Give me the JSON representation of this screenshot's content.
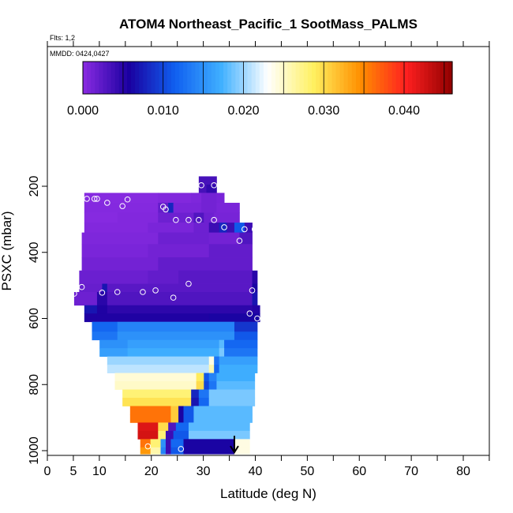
{
  "header": {
    "title": "ATOM4 Northeast_Pacific_1 SootMass_PALMS",
    "flights": "Flts: 1,2",
    "mmdd": "MMDD: 0424,0427"
  },
  "chart_data": {
    "type": "heatmap",
    "title": "ATOM4 Northeast_Pacific_1 SootMass_PALMS",
    "xlabel": "Latitude (deg N)",
    "ylabel": "PSXC (mbar)",
    "xlim": [
      0,
      85
    ],
    "ylim": [
      1010,
      60
    ],
    "x_ticks_major": [
      0,
      10,
      20,
      30,
      40,
      50,
      60,
      70,
      80
    ],
    "x_tick_labels": [
      "0",
      "5",
      "10",
      "20",
      "30",
      "40",
      "50",
      "60",
      "70",
      "80"
    ],
    "x_tick_label_values": [
      0,
      5,
      10,
      20,
      30,
      40,
      50,
      60,
      70,
      80
    ],
    "x_ticks_minor": [
      5,
      15,
      25,
      35,
      45,
      55,
      65,
      75,
      85
    ],
    "y_ticks": [
      200,
      400,
      600,
      800,
      1000
    ],
    "y_tick_labels": [
      "200",
      "400",
      "600",
      "800",
      "1000"
    ],
    "colorbar": {
      "min": 0.0,
      "max": 0.046,
      "ticks": [
        0.0,
        0.01,
        0.02,
        0.03,
        0.04
      ],
      "tick_labels": [
        "0.000",
        "0.010",
        "0.020",
        "0.030",
        "0.040"
      ],
      "color_stops": [
        "#8a2be2",
        "#1a00a0",
        "#1060f0",
        "#40b0ff",
        "#ffffff",
        "#fff060",
        "#ff9000",
        "#ff2020",
        "#900000"
      ]
    },
    "grid": false,
    "rows": [
      {
        "p_top": 170,
        "p_bot": 195,
        "segments": [
          {
            "lat0": 28.0,
            "lat1": 31.5,
            "value": 0.0035
          }
        ]
      },
      {
        "p_top": 195,
        "p_bot": 220,
        "segments": [
          {
            "lat0": 28.0,
            "lat1": 29.5,
            "value": 0.0035
          },
          {
            "lat0": 29.5,
            "lat1": 31.5,
            "value": 0.0045
          }
        ]
      },
      {
        "p_top": 220,
        "p_bot": 250,
        "segments": [
          {
            "lat0": 5.5,
            "lat1": 20.0,
            "value": 0.0002
          },
          {
            "lat0": 20.0,
            "lat1": 26.5,
            "value": 0.0004
          },
          {
            "lat0": 26.5,
            "lat1": 28.5,
            "value": 0.0006
          },
          {
            "lat0": 28.5,
            "lat1": 31.5,
            "value": 0.0012
          },
          {
            "lat0": 31.5,
            "lat1": 33.0,
            "value": 0.0009
          }
        ]
      },
      {
        "p_top": 250,
        "p_bot": 280,
        "segments": [
          {
            "lat0": 5.5,
            "lat1": 20.0,
            "value": 0.0003
          },
          {
            "lat0": 20.0,
            "lat1": 22.0,
            "value": 0.002
          },
          {
            "lat0": 22.0,
            "lat1": 23.0,
            "value": 0.008
          },
          {
            "lat0": 23.0,
            "lat1": 28.5,
            "value": 0.0008
          },
          {
            "lat0": 28.5,
            "lat1": 31.5,
            "value": 0.0012
          },
          {
            "lat0": 31.5,
            "lat1": 36.0,
            "value": 0.0008
          }
        ]
      },
      {
        "p_top": 280,
        "p_bot": 310,
        "segments": [
          {
            "lat0": 5.5,
            "lat1": 12.0,
            "value": 0.0002
          },
          {
            "lat0": 12.0,
            "lat1": 20.0,
            "value": 0.0004
          },
          {
            "lat0": 20.0,
            "lat1": 27.0,
            "value": 0.0015
          },
          {
            "lat0": 27.0,
            "lat1": 29.0,
            "value": 0.003
          },
          {
            "lat0": 29.0,
            "lat1": 31.0,
            "value": 0.0015
          },
          {
            "lat0": 31.0,
            "lat1": 36.0,
            "value": 0.001
          }
        ]
      },
      {
        "p_top": 310,
        "p_bot": 340,
        "segments": [
          {
            "lat0": 5.5,
            "lat1": 18.0,
            "value": 0.0004
          },
          {
            "lat0": 18.0,
            "lat1": 27.0,
            "value": 0.0008
          },
          {
            "lat0": 27.0,
            "lat1": 30.0,
            "value": 0.0015
          },
          {
            "lat0": 30.0,
            "lat1": 32.0,
            "value": 0.004
          },
          {
            "lat0": 32.0,
            "lat1": 33.5,
            "value": 0.008
          },
          {
            "lat0": 33.5,
            "lat1": 35.0,
            "value": 0.004
          },
          {
            "lat0": 35.0,
            "lat1": 37.0,
            "value": 0.011
          },
          {
            "lat0": 37.0,
            "lat1": 38.5,
            "value": 0.004
          }
        ]
      },
      {
        "p_top": 340,
        "p_bot": 375,
        "segments": [
          {
            "lat0": 5.0,
            "lat1": 20.0,
            "value": 0.0006
          },
          {
            "lat0": 20.0,
            "lat1": 30.0,
            "value": 0.0015
          },
          {
            "lat0": 30.0,
            "lat1": 36.0,
            "value": 0.0012
          },
          {
            "lat0": 36.0,
            "lat1": 38.5,
            "value": 0.003
          }
        ]
      },
      {
        "p_top": 375,
        "p_bot": 415,
        "segments": [
          {
            "lat0": 5.0,
            "lat1": 18.0,
            "value": 0.0008
          },
          {
            "lat0": 18.0,
            "lat1": 30.0,
            "value": 0.0012
          },
          {
            "lat0": 30.0,
            "lat1": 38.5,
            "value": 0.002
          }
        ]
      },
      {
        "p_top": 415,
        "p_bot": 455,
        "segments": [
          {
            "lat0": 5.0,
            "lat1": 20.0,
            "value": 0.0012
          },
          {
            "lat0": 20.0,
            "lat1": 38.5,
            "value": 0.002
          }
        ]
      },
      {
        "p_top": 455,
        "p_bot": 495,
        "segments": [
          {
            "lat0": 4.5,
            "lat1": 18.0,
            "value": 0.0016
          },
          {
            "lat0": 18.0,
            "lat1": 24.0,
            "value": 0.002
          },
          {
            "lat0": 24.0,
            "lat1": 38.5,
            "value": 0.0025
          },
          {
            "lat0": 38.5,
            "lat1": 39.5,
            "value": 0.005
          }
        ]
      },
      {
        "p_top": 495,
        "p_bot": 520,
        "segments": [
          {
            "lat0": 4.5,
            "lat1": 9.0,
            "value": 0.0018
          },
          {
            "lat0": 9.0,
            "lat1": 10.0,
            "value": 0.007
          },
          {
            "lat0": 10.0,
            "lat1": 38.5,
            "value": 0.0025
          },
          {
            "lat0": 38.5,
            "lat1": 39.5,
            "value": 0.006
          }
        ]
      },
      {
        "p_top": 520,
        "p_bot": 560,
        "segments": [
          {
            "lat0": 3.5,
            "lat1": 8.0,
            "value": 0.0015
          },
          {
            "lat0": 8.0,
            "lat1": 10.0,
            "value": 0.005
          },
          {
            "lat0": 10.0,
            "lat1": 38.5,
            "value": 0.003
          },
          {
            "lat0": 38.5,
            "lat1": 39.5,
            "value": 0.007
          }
        ]
      },
      {
        "p_top": 560,
        "p_bot": 585,
        "segments": [
          {
            "lat0": 5.5,
            "lat1": 8.0,
            "value": 0.007
          },
          {
            "lat0": 8.0,
            "lat1": 10.0,
            "value": 0.0055
          },
          {
            "lat0": 10.0,
            "lat1": 38.5,
            "value": 0.0048
          },
          {
            "lat0": 38.5,
            "lat1": 40.0,
            "value": 0.0052
          }
        ]
      },
      {
        "p_top": 585,
        "p_bot": 610,
        "segments": [
          {
            "lat0": 5.5,
            "lat1": 8.0,
            "value": 0.0055
          },
          {
            "lat0": 8.0,
            "lat1": 30.0,
            "value": 0.0055
          },
          {
            "lat0": 30.0,
            "lat1": 38.5,
            "value": 0.006
          },
          {
            "lat0": 38.5,
            "lat1": 40.0,
            "value": 0.006
          }
        ]
      },
      {
        "p_top": 610,
        "p_bot": 640,
        "segments": [
          {
            "lat0": 7.0,
            "lat1": 12.0,
            "value": 0.012
          },
          {
            "lat0": 12.0,
            "lat1": 35.0,
            "value": 0.014
          },
          {
            "lat0": 35.0,
            "lat1": 39.5,
            "value": 0.009
          }
        ]
      },
      {
        "p_top": 640,
        "p_bot": 665,
        "segments": [
          {
            "lat0": 7.0,
            "lat1": 12.0,
            "value": 0.013
          },
          {
            "lat0": 12.0,
            "lat1": 35.0,
            "value": 0.015
          },
          {
            "lat0": 35.0,
            "lat1": 39.5,
            "value": 0.011
          }
        ]
      },
      {
        "p_top": 665,
        "p_bot": 690,
        "segments": [
          {
            "lat0": 8.5,
            "lat1": 14.0,
            "value": 0.015
          },
          {
            "lat0": 14.0,
            "lat1": 32.0,
            "value": 0.016
          },
          {
            "lat0": 32.0,
            "lat1": 33.0,
            "value": 0.018
          },
          {
            "lat0": 33.0,
            "lat1": 39.5,
            "value": 0.012
          }
        ]
      },
      {
        "p_top": 690,
        "p_bot": 715,
        "segments": [
          {
            "lat0": 8.5,
            "lat1": 14.0,
            "value": 0.016
          },
          {
            "lat0": 14.0,
            "lat1": 32.0,
            "value": 0.017
          },
          {
            "lat0": 32.0,
            "lat1": 33.0,
            "value": 0.019
          },
          {
            "lat0": 33.0,
            "lat1": 39.5,
            "value": 0.013
          }
        ]
      },
      {
        "p_top": 715,
        "p_bot": 740,
        "segments": [
          {
            "lat0": 10.0,
            "lat1": 30.0,
            "value": 0.02
          },
          {
            "lat0": 30.0,
            "lat1": 31.0,
            "value": 0.024
          },
          {
            "lat0": 31.0,
            "lat1": 32.0,
            "value": 0.013
          },
          {
            "lat0": 32.0,
            "lat1": 39.5,
            "value": 0.016
          }
        ]
      },
      {
        "p_top": 740,
        "p_bot": 765,
        "segments": [
          {
            "lat0": 10.0,
            "lat1": 30.0,
            "value": 0.021
          },
          {
            "lat0": 30.0,
            "lat1": 31.0,
            "value": 0.026
          },
          {
            "lat0": 31.0,
            "lat1": 32.0,
            "value": 0.012
          },
          {
            "lat0": 32.0,
            "lat1": 39.5,
            "value": 0.017
          }
        ]
      },
      {
        "p_top": 765,
        "p_bot": 790,
        "segments": [
          {
            "lat0": 11.5,
            "lat1": 27.5,
            "value": 0.0245
          },
          {
            "lat0": 27.5,
            "lat1": 29.0,
            "value": 0.029
          },
          {
            "lat0": 29.0,
            "lat1": 30.0,
            "value": 0.011
          },
          {
            "lat0": 30.0,
            "lat1": 31.5,
            "value": 0.014
          },
          {
            "lat0": 31.5,
            "lat1": 39.0,
            "value": 0.017
          }
        ]
      },
      {
        "p_top": 790,
        "p_bot": 815,
        "segments": [
          {
            "lat0": 11.5,
            "lat1": 27.5,
            "value": 0.025
          },
          {
            "lat0": 27.5,
            "lat1": 29.0,
            "value": 0.03
          },
          {
            "lat0": 29.0,
            "lat1": 30.0,
            "value": 0.01
          },
          {
            "lat0": 30.0,
            "lat1": 31.5,
            "value": 0.013
          },
          {
            "lat0": 31.5,
            "lat1": 39.0,
            "value": 0.018
          }
        ]
      },
      {
        "p_top": 815,
        "p_bot": 840,
        "segments": [
          {
            "lat0": 13.0,
            "lat1": 26.5,
            "value": 0.028
          },
          {
            "lat0": 26.5,
            "lat1": 28.0,
            "value": 0.008
          },
          {
            "lat0": 28.0,
            "lat1": 30.0,
            "value": 0.013
          },
          {
            "lat0": 30.0,
            "lat1": 39.0,
            "value": 0.019
          }
        ]
      },
      {
        "p_top": 840,
        "p_bot": 865,
        "segments": [
          {
            "lat0": 13.0,
            "lat1": 26.5,
            "value": 0.0295
          },
          {
            "lat0": 26.5,
            "lat1": 28.0,
            "value": 0.007
          },
          {
            "lat0": 28.0,
            "lat1": 30.0,
            "value": 0.012
          },
          {
            "lat0": 30.0,
            "lat1": 39.0,
            "value": 0.019
          }
        ]
      },
      {
        "p_top": 865,
        "p_bot": 890,
        "segments": [
          {
            "lat0": 14.5,
            "lat1": 22.5,
            "value": 0.036
          },
          {
            "lat0": 22.5,
            "lat1": 24.0,
            "value": 0.031
          },
          {
            "lat0": 24.0,
            "lat1": 25.0,
            "value": 0.006
          },
          {
            "lat0": 25.0,
            "lat1": 27.0,
            "value": 0.011
          },
          {
            "lat0": 27.0,
            "lat1": 38.5,
            "value": 0.018
          }
        ]
      },
      {
        "p_top": 890,
        "p_bot": 915,
        "segments": [
          {
            "lat0": 14.5,
            "lat1": 22.5,
            "value": 0.036
          },
          {
            "lat0": 22.5,
            "lat1": 24.0,
            "value": 0.031
          },
          {
            "lat0": 24.0,
            "lat1": 25.0,
            "value": 0.006
          },
          {
            "lat0": 25.0,
            "lat1": 27.0,
            "value": 0.011
          },
          {
            "lat0": 27.0,
            "lat1": 38.5,
            "value": 0.018
          }
        ]
      },
      {
        "p_top": 915,
        "p_bot": 940,
        "segments": [
          {
            "lat0": 16.0,
            "lat1": 20.0,
            "value": 0.042
          },
          {
            "lat0": 20.0,
            "lat1": 22.0,
            "value": 0.03
          },
          {
            "lat0": 22.0,
            "lat1": 23.5,
            "value": 0.003
          },
          {
            "lat0": 23.5,
            "lat1": 26.0,
            "value": 0.012
          },
          {
            "lat0": 26.0,
            "lat1": 38.0,
            "value": 0.018
          }
        ]
      },
      {
        "p_top": 940,
        "p_bot": 965,
        "segments": [
          {
            "lat0": 16.0,
            "lat1": 20.0,
            "value": 0.0425
          },
          {
            "lat0": 20.0,
            "lat1": 21.5,
            "value": 0.028
          },
          {
            "lat0": 21.5,
            "lat1": 23.0,
            "value": 0.004
          },
          {
            "lat0": 23.0,
            "lat1": 26.0,
            "value": 0.011
          },
          {
            "lat0": 26.0,
            "lat1": 38.0,
            "value": 0.019
          }
        ]
      },
      {
        "p_top": 965,
        "p_bot": 990,
        "segments": [
          {
            "lat0": 16.5,
            "lat1": 18.5,
            "value": 0.036
          },
          {
            "lat0": 18.5,
            "lat1": 20.5,
            "value": 0.028
          },
          {
            "lat0": 20.5,
            "lat1": 21.5,
            "value": 0.015
          },
          {
            "lat0": 21.5,
            "lat1": 22.5,
            "value": 0.004
          },
          {
            "lat0": 22.5,
            "lat1": 25.0,
            "value": 0.012
          },
          {
            "lat0": 25.0,
            "lat1": 35.0,
            "value": 0.006
          },
          {
            "lat0": 35.0,
            "lat1": 38.0,
            "value": 0.024
          }
        ]
      },
      {
        "p_top": 990,
        "p_bot": 1010,
        "segments": [
          {
            "lat0": 16.5,
            "lat1": 18.5,
            "value": 0.034
          },
          {
            "lat0": 18.5,
            "lat1": 20.5,
            "value": 0.026
          },
          {
            "lat0": 20.5,
            "lat1": 21.5,
            "value": 0.014
          },
          {
            "lat0": 21.5,
            "lat1": 22.5,
            "value": 0.004
          },
          {
            "lat0": 22.5,
            "lat1": 25.0,
            "value": 0.011
          },
          {
            "lat0": 25.0,
            "lat1": 35.0,
            "value": 0.006
          },
          {
            "lat0": 35.0,
            "lat1": 38.0,
            "value": 0.024
          }
        ]
      }
    ],
    "points": [
      {
        "lat": 28.5,
        "p": 197
      },
      {
        "lat": 31.0,
        "p": 197
      },
      {
        "lat": 6.0,
        "p": 238
      },
      {
        "lat": 7.5,
        "p": 238
      },
      {
        "lat": 8.0,
        "p": 238
      },
      {
        "lat": 10.0,
        "p": 250
      },
      {
        "lat": 13.0,
        "p": 260
      },
      {
        "lat": 14.0,
        "p": 240
      },
      {
        "lat": 21.0,
        "p": 262
      },
      {
        "lat": 21.5,
        "p": 270
      },
      {
        "lat": 23.5,
        "p": 302
      },
      {
        "lat": 26.0,
        "p": 302
      },
      {
        "lat": 28.0,
        "p": 302
      },
      {
        "lat": 31.0,
        "p": 302
      },
      {
        "lat": 33.0,
        "p": 324
      },
      {
        "lat": 37.0,
        "p": 330
      },
      {
        "lat": 39.0,
        "p": 330
      },
      {
        "lat": 36.0,
        "p": 365
      },
      {
        "lat": 5.0,
        "p": 505
      },
      {
        "lat": 26.0,
        "p": 495
      },
      {
        "lat": 9.0,
        "p": 522
      },
      {
        "lat": 12.0,
        "p": 520
      },
      {
        "lat": 17.0,
        "p": 520
      },
      {
        "lat": 19.5,
        "p": 515
      },
      {
        "lat": 38.5,
        "p": 515
      },
      {
        "lat": 23.0,
        "p": 537
      },
      {
        "lat": 3.5,
        "p": 525
      },
      {
        "lat": 38.0,
        "p": 585
      },
      {
        "lat": 39.5,
        "p": 600
      },
      {
        "lat": 18.0,
        "p": 987
      },
      {
        "lat": 24.5,
        "p": 995
      }
    ],
    "arrow": {
      "lat": 35.0,
      "p_from": 955,
      "p_to": 1005
    }
  }
}
